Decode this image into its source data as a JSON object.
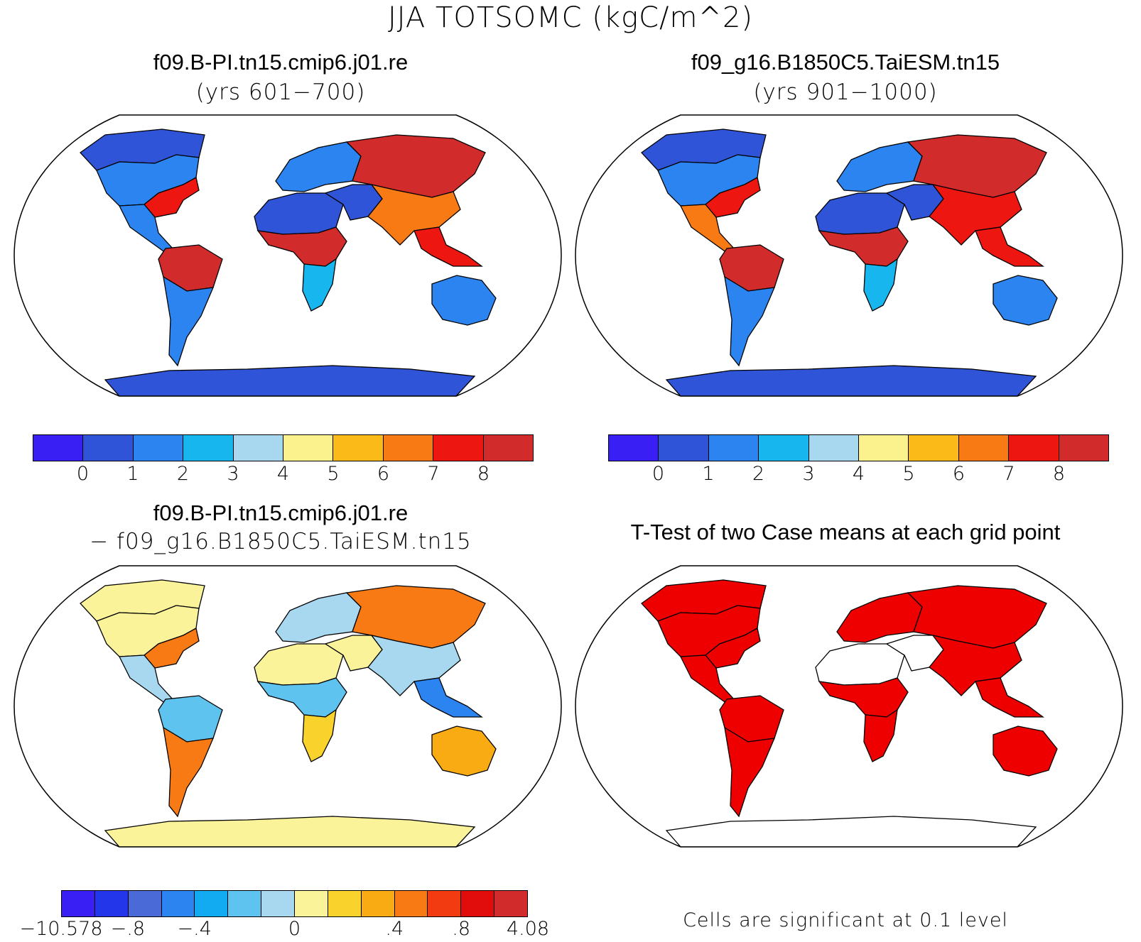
{
  "figure": {
    "title": "JJA TOTSOMC (kgC/m^2)"
  },
  "panels": {
    "top_left": {
      "title": "f09.B-PI.tn15.cmip6.j01.re",
      "subtitle": "(yrs 601−700)"
    },
    "top_right": {
      "title": "f09_g16.B1850C5.TaiESM.tn15",
      "subtitle": "(yrs 901−1000)"
    },
    "bottom_left": {
      "title": "f09.B-PI.tn15.cmip6.j01.re",
      "subtitle": "− f09_g16.B1850C5.TaiESM.tn15"
    },
    "bottom_right": {
      "title": "T-Test of two Case means at each grid point",
      "footnote": "Cells are significant at 0.1 level"
    }
  },
  "colorbars": {
    "abs": {
      "colors": [
        "#3a1ff5",
        "#2f54d8",
        "#2b84ef",
        "#18b6ee",
        "#a8d7f0",
        "#fbf28e",
        "#fbba17",
        "#f77a14",
        "#ee1610",
        "#d12b2b"
      ],
      "ticks": [
        "0",
        "1",
        "2",
        "3",
        "4",
        "5",
        "6",
        "7",
        "8"
      ]
    },
    "diff": {
      "colors": [
        "#3a1ff5",
        "#2336ea",
        "#4a6ad8",
        "#2b84ef",
        "#12aaf0",
        "#5fc3ef",
        "#a8d7f0",
        "#fbf39a",
        "#f9d22c",
        "#f8ab12",
        "#f77a14",
        "#f33b12",
        "#e10d0d",
        "#d12b2b"
      ],
      "ticks": [
        "−10.578",
        "−.8",
        "−.4",
        "0",
        ".4",
        ".8",
        "4.08"
      ]
    }
  },
  "map_data": {
    "projection": "Robinson",
    "regions_abs_left": {
      "north_america": "#2b84ef",
      "us_east": "#ee1610",
      "canada_north": "#2f54d8",
      "central_america": "#2b84ef",
      "amazon": "#d12b2b",
      "south_america_south": "#2b84ef",
      "sahara": "#2f54d8",
      "africa_tropics": "#d12b2b",
      "africa_south": "#18b6ee",
      "europe": "#2b84ef",
      "russia_east": "#d12b2b",
      "middle_east": "#2f54d8",
      "india_china": "#f77a14",
      "se_asia": "#ee1610",
      "australia": "#2b84ef",
      "antarctica": "#2f54d8"
    },
    "regions_abs_right": {
      "north_america": "#2b84ef",
      "us_east": "#ee1610",
      "canada_north": "#2f54d8",
      "central_america": "#f77a14",
      "amazon": "#d12b2b",
      "south_america_south": "#2b84ef",
      "sahara": "#2f54d8",
      "africa_tropics": "#d12b2b",
      "africa_south": "#18b6ee",
      "europe": "#2b84ef",
      "russia_east": "#d12b2b",
      "middle_east": "#2f54d8",
      "india_china": "#ee1610",
      "se_asia": "#ee1610",
      "australia": "#2b84ef",
      "antarctica": "#2f54d8"
    },
    "regions_diff": {
      "north_america": "#fbf39a",
      "us_east": "#f77a14",
      "canada_north": "#fbf39a",
      "central_america": "#a8d7f0",
      "amazon": "#5fc3ef",
      "south_america_south": "#f77a14",
      "sahara": "#fbf39a",
      "africa_tropics": "#5fc3ef",
      "africa_south": "#f9d22c",
      "europe": "#a8d7f0",
      "russia_east": "#f77a14",
      "middle_east": "#fbf39a",
      "india_china": "#a8d7f0",
      "se_asia": "#2b84ef",
      "australia": "#f8ab12",
      "antarctica": "#fbf39a"
    },
    "ttest": {
      "significant_color": "#ee0000",
      "nonsignificant_regions": [
        "sahara",
        "middle_east",
        "antarctica"
      ]
    }
  }
}
